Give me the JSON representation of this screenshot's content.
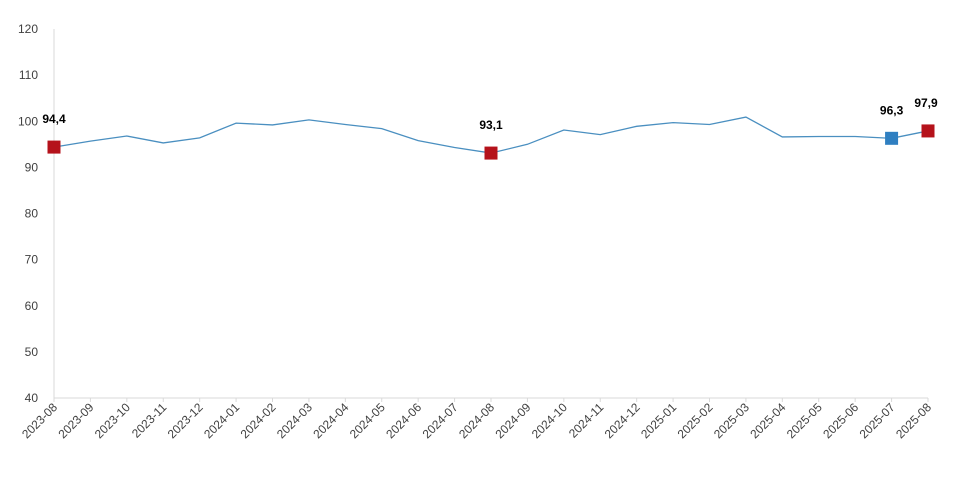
{
  "chart_data": {
    "type": "line",
    "title": "",
    "xlabel": "",
    "ylabel": "",
    "ylim": [
      40,
      120
    ],
    "yticks": [
      40,
      50,
      60,
      70,
      80,
      90,
      100,
      110,
      120
    ],
    "ytick_labels": [
      "40",
      "50",
      "60",
      "70",
      "80",
      "90",
      "100",
      "110",
      "120"
    ],
    "grid": false,
    "legend": "none",
    "categories": [
      "2023-08",
      "2023-09",
      "2023-10",
      "2023-11",
      "2023-12",
      "2024-01",
      "2024-02",
      "2024-03",
      "2024-04",
      "2024-05",
      "2024-06",
      "2024-07",
      "2024-08",
      "2024-09",
      "2024-10",
      "2024-11",
      "2024-12",
      "2025-01",
      "2025-02",
      "2025-03",
      "2025-04",
      "2025-05",
      "2025-06",
      "2025-07",
      "2025-08"
    ],
    "series": [
      {
        "color": "#4a8fc0",
        "values": [
          94.4,
          95.7,
          96.8,
          95.3,
          96.4,
          99.6,
          99.2,
          100.3,
          99.3,
          98.4,
          95.8,
          94.3,
          93.1,
          95.0,
          98.1,
          97.1,
          98.9,
          99.7,
          99.3,
          100.9,
          96.6,
          96.7,
          96.7,
          96.3,
          97.9
        ]
      }
    ],
    "highlights": [
      {
        "index": 0,
        "label": "94,4",
        "color": "#b5121b"
      },
      {
        "index": 12,
        "label": "93,1",
        "color": "#b5121b"
      },
      {
        "index": 23,
        "label": "96,3",
        "color": "#2f7fc1"
      },
      {
        "index": 24,
        "label": "97,9",
        "color": "#b5121b"
      }
    ]
  }
}
